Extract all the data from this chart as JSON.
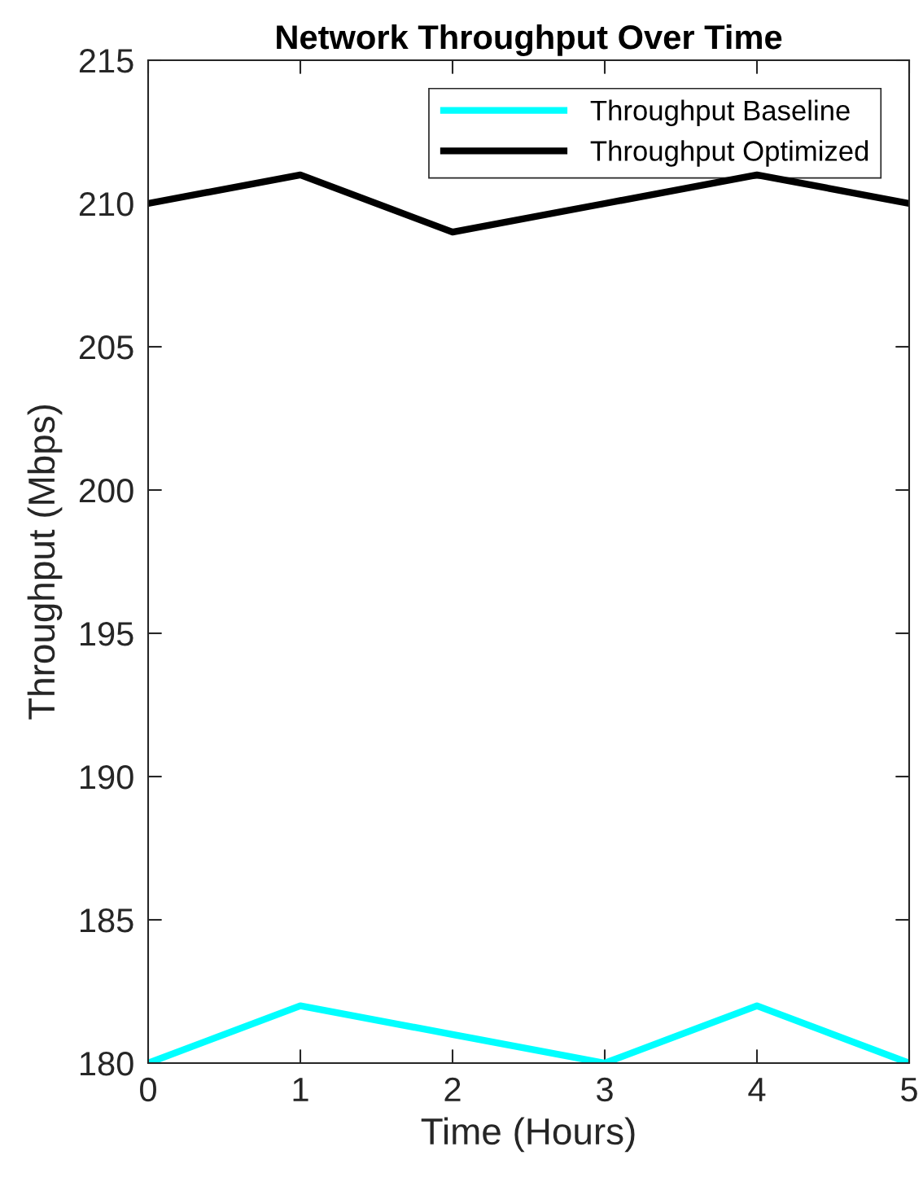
{
  "chart_data": {
    "type": "line",
    "title": "Network Throughput Over Time",
    "xlabel": "Time (Hours)",
    "ylabel": "Throughput (Mbps)",
    "x": [
      0,
      1,
      2,
      3,
      4,
      5
    ],
    "series": [
      {
        "name": "Throughput Baseline",
        "color": "#00ffff",
        "values": [
          180,
          182,
          181,
          180,
          182,
          180
        ]
      },
      {
        "name": "Throughput Optimized",
        "color": "#000000",
        "values": [
          210,
          211,
          209,
          210,
          211,
          210
        ]
      }
    ],
    "xlim": [
      0,
      5
    ],
    "xticks": [
      0,
      1,
      2,
      3,
      4,
      5
    ],
    "ylim": [
      180,
      215
    ],
    "yticks": [
      180,
      185,
      190,
      195,
      200,
      205,
      210,
      215
    ],
    "grid": false,
    "legend": "top right",
    "marker": "none",
    "line_style": "solid"
  }
}
